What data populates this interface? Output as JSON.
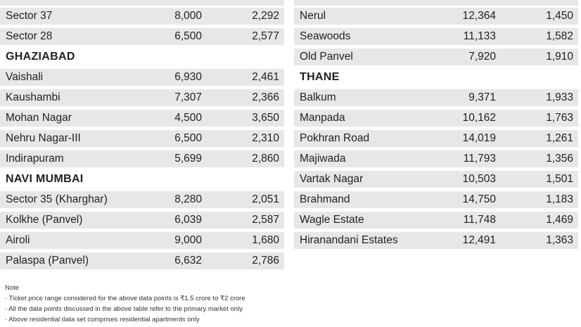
{
  "left": [
    {
      "type": "cut"
    },
    {
      "type": "row",
      "name": "Sector 37",
      "v1": "8,000",
      "v2": "2,292"
    },
    {
      "type": "row",
      "name": "Sector 28",
      "v1": "6,500",
      "v2": "2,577"
    },
    {
      "type": "head",
      "name": "GHAZIABAD"
    },
    {
      "type": "row",
      "name": "Vaishali",
      "v1": "6,930",
      "v2": "2,461"
    },
    {
      "type": "row",
      "name": "Kaushambi",
      "v1": "7,307",
      "v2": "2,366"
    },
    {
      "type": "row",
      "name": "Mohan Nagar",
      "v1": "4,500",
      "v2": "3,650"
    },
    {
      "type": "row",
      "name": "Nehru Nagar-III",
      "v1": "6,500",
      "v2": "2,310"
    },
    {
      "type": "row",
      "name": "Indirapuram",
      "v1": "5,699",
      "v2": "2,860"
    },
    {
      "type": "head",
      "name": "NAVI MUMBAI"
    },
    {
      "type": "row",
      "name": "Sector 35 (Kharghar)",
      "v1": "8,280",
      "v2": "2,051"
    },
    {
      "type": "row",
      "name": "Kolkhe (Panvel)",
      "v1": "6,039",
      "v2": "2,587"
    },
    {
      "type": "row",
      "name": "Airoli",
      "v1": "9,000",
      "v2": "1,680"
    },
    {
      "type": "row",
      "name": "Palaspa (Panvel)",
      "v1": "6,632",
      "v2": "2,786"
    }
  ],
  "right": [
    {
      "type": "cut"
    },
    {
      "type": "row",
      "name": "Nerul",
      "v1": "12,364",
      "v2": "1,450"
    },
    {
      "type": "row",
      "name": "Seawoods",
      "v1": "11,133",
      "v2": "1,582"
    },
    {
      "type": "row",
      "name": "Old Panvel",
      "v1": "7,920",
      "v2": "1,910"
    },
    {
      "type": "head",
      "name": "THANE"
    },
    {
      "type": "row",
      "name": "Balkum",
      "v1": "9,371",
      "v2": "1,933"
    },
    {
      "type": "row",
      "name": "Manpada",
      "v1": "10,162",
      "v2": "1,763"
    },
    {
      "type": "row",
      "name": "Pokhran Road",
      "v1": "14,019",
      "v2": "1,261"
    },
    {
      "type": "row",
      "name": "Majiwada",
      "v1": "11,793",
      "v2": "1,356"
    },
    {
      "type": "row",
      "name": "Vartak Nagar",
      "v1": "10,503",
      "v2": "1,501"
    },
    {
      "type": "row",
      "name": "Brahmand",
      "v1": "14,750",
      "v2": "1,183"
    },
    {
      "type": "row",
      "name": "Wagle Estate",
      "v1": "11,748",
      "v2": "1,469"
    },
    {
      "type": "row",
      "name": "Hiranandani Estates",
      "v1": "12,491",
      "v2": "1,363"
    }
  ],
  "notes": {
    "title": "Note",
    "items": [
      "· Ticket price range considered for the above data points is ₹1.5 crore to ₹2 crore",
      "· All the data points discussed in the above table refer to the primary market only",
      "· Above residential data set comprises residential apartments only"
    ]
  }
}
